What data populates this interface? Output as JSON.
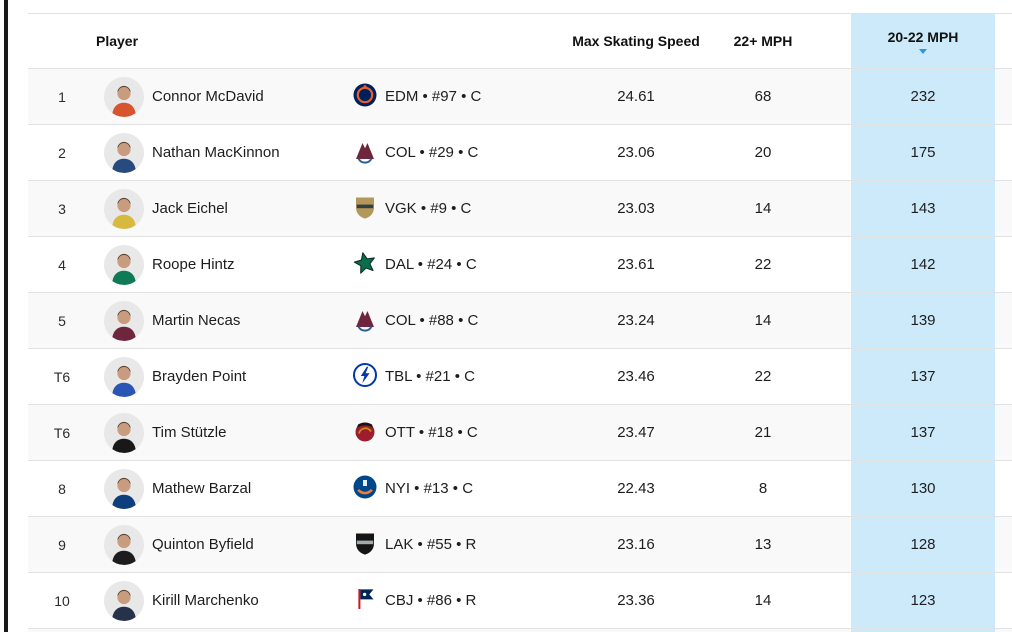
{
  "window": {
    "left_edge_bar_color": "#1a1a1c"
  },
  "table": {
    "headers": {
      "player": "Player",
      "max_skating_speed": "Max Skating Speed",
      "mph_22": "22+ MPH",
      "mph_20_22": "20-22 MPH"
    },
    "sort": {
      "active_column": "20-22 MPH",
      "direction": "desc",
      "icon": "sort-descending-icon"
    },
    "colors": {
      "highlight_column_bg": "#cdeafb",
      "row_alt_bg": "#f9f9f9",
      "row_bg": "#ffffff",
      "border": "#e2e2e2",
      "sort_arrow": "#2e96db",
      "header_text": "#111111",
      "body_text": "#1d1d1f"
    },
    "rows": [
      {
        "rank": "1",
        "player": "Connor McDavid",
        "team_info": "EDM • #97 • C",
        "max_skating_speed": "24.61",
        "bursts_22_plus": "68",
        "bursts_20_22": "232",
        "logo": {
          "icon": "edm-oilers-logo-icon",
          "shape": "circle-ring",
          "primary": "#00205b",
          "secondary": "#e8602c"
        },
        "avatar": {
          "icon": "player-headshot",
          "jersey": "#d6552e"
        }
      },
      {
        "rank": "2",
        "player": "Nathan MacKinnon",
        "team_info": "COL • #29 • C",
        "max_skating_speed": "23.06",
        "bursts_22_plus": "20",
        "bursts_20_22": "175",
        "logo": {
          "icon": "col-avalanche-logo-icon",
          "shape": "mountain",
          "primary": "#6f263d",
          "secondary": "#236192"
        },
        "avatar": {
          "icon": "player-headshot",
          "jersey": "#274b7f"
        }
      },
      {
        "rank": "3",
        "player": "Jack Eichel",
        "team_info": "VGK • #9 • C",
        "max_skating_speed": "23.03",
        "bursts_22_plus": "14",
        "bursts_20_22": "143",
        "logo": {
          "icon": "vgk-golden-knights-logo-icon",
          "shape": "shield",
          "primary": "#b4975a",
          "secondary": "#333f42"
        },
        "avatar": {
          "icon": "player-headshot",
          "jersey": "#d8b93f"
        }
      },
      {
        "rank": "4",
        "player": "Roope Hintz",
        "team_info": "DAL • #24 • C",
        "max_skating_speed": "23.61",
        "bursts_22_plus": "22",
        "bursts_20_22": "142",
        "logo": {
          "icon": "dal-stars-logo-icon",
          "shape": "star",
          "primary": "#0a6e4c",
          "secondary": "#0b2f22"
        },
        "avatar": {
          "icon": "player-headshot",
          "jersey": "#0f7a55"
        }
      },
      {
        "rank": "5",
        "player": "Martin Necas",
        "team_info": "COL • #88 • C",
        "max_skating_speed": "23.24",
        "bursts_22_plus": "14",
        "bursts_20_22": "139",
        "logo": {
          "icon": "col-avalanche-logo-icon",
          "shape": "mountain",
          "primary": "#6f263d",
          "secondary": "#236192"
        },
        "avatar": {
          "icon": "player-headshot",
          "jersey": "#6f263d"
        }
      },
      {
        "rank": "T6",
        "player": "Brayden Point",
        "team_info": "TBL • #21 • C",
        "max_skating_speed": "23.46",
        "bursts_22_plus": "22",
        "bursts_20_22": "137",
        "logo": {
          "icon": "tbl-lightning-logo-icon",
          "shape": "bolt-circle",
          "primary": "#0038a8",
          "secondary": "#ffffff"
        },
        "avatar": {
          "icon": "player-headshot",
          "jersey": "#2b55b5"
        }
      },
      {
        "rank": "T6",
        "player": "Tim Stützle",
        "team_info": "OTT • #18 • C",
        "max_skating_speed": "23.47",
        "bursts_22_plus": "21",
        "bursts_20_22": "137",
        "logo": {
          "icon": "ott-senators-logo-icon",
          "shape": "head",
          "primary": "#9d1c2e",
          "secondary": "#c69214"
        },
        "avatar": {
          "icon": "player-headshot",
          "jersey": "#181818"
        }
      },
      {
        "rank": "8",
        "player": "Mathew Barzal",
        "team_info": "NYI • #13 • C",
        "max_skating_speed": "22.43",
        "bursts_22_plus": "8",
        "bursts_20_22": "130",
        "logo": {
          "icon": "nyi-islanders-logo-icon",
          "shape": "circle-arc",
          "primary": "#00468b",
          "secondary": "#f47d30"
        },
        "avatar": {
          "icon": "player-headshot",
          "jersey": "#0f3e7c"
        }
      },
      {
        "rank": "9",
        "player": "Quinton Byfield",
        "team_info": "LAK • #55 • R",
        "max_skating_speed": "23.16",
        "bursts_22_plus": "13",
        "bursts_20_22": "128",
        "logo": {
          "icon": "lak-kings-logo-icon",
          "shape": "shield",
          "primary": "#141414",
          "secondary": "#a2aaad"
        },
        "avatar": {
          "icon": "player-headshot",
          "jersey": "#1c1c1e"
        }
      },
      {
        "rank": "10",
        "player": "Kirill Marchenko",
        "team_info": "CBJ • #86 • R",
        "max_skating_speed": "23.36",
        "bursts_22_plus": "14",
        "bursts_20_22": "123",
        "logo": {
          "icon": "cbj-blue-jackets-logo-icon",
          "shape": "flag",
          "primary": "#002654",
          "secondary": "#ce1126"
        },
        "avatar": {
          "icon": "player-headshot",
          "jersey": "#26324a"
        }
      }
    ]
  }
}
